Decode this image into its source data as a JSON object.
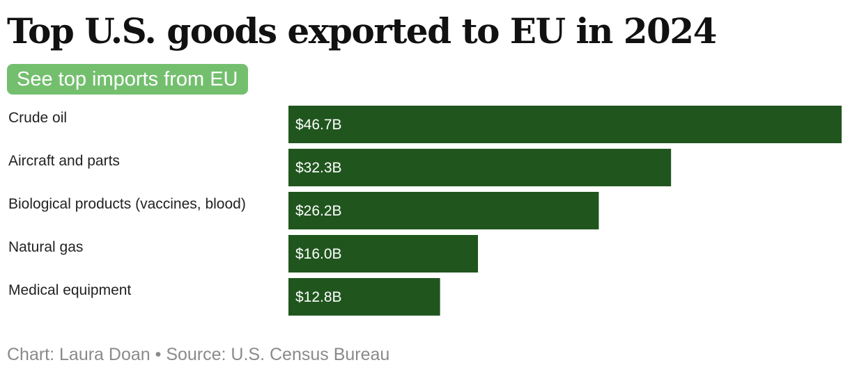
{
  "title": "Top U.S. goods exported to EU in 2024",
  "toggle_button_label": "See top imports from EU",
  "credit": "Chart: Laura Doan • Source: U.S. Census Bureau",
  "colors": {
    "bar": "#20561e",
    "toggle_button": "#73bf6e"
  },
  "chart_data": {
    "type": "bar",
    "orientation": "horizontal",
    "title": "Top U.S. goods exported to EU in 2024",
    "xlabel": "",
    "ylabel": "",
    "xlim": [
      0,
      46.7
    ],
    "grid": false,
    "legend": "none",
    "categories": [
      "Crude oil",
      "Aircraft and parts",
      "Biological products (vaccines, blood)",
      "Natural gas",
      "Medical equipment"
    ],
    "values": [
      46.7,
      32.3,
      26.2,
      16.0,
      12.8
    ],
    "value_labels": [
      "$46.7B",
      "$32.3B",
      "$26.2B",
      "$16.0B",
      "$12.8B"
    ]
  }
}
